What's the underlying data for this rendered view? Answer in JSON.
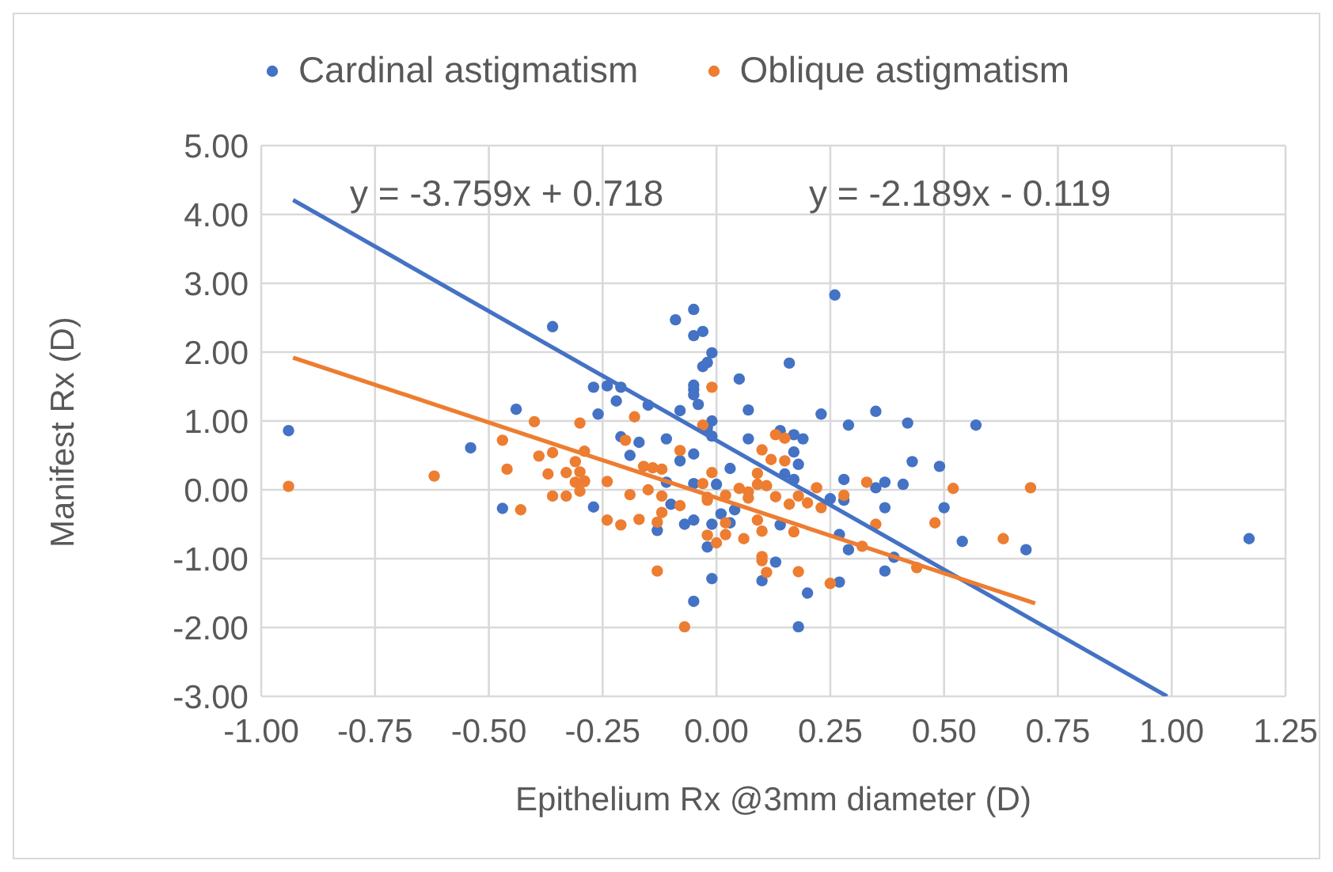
{
  "chart_data": {
    "type": "scatter",
    "xlabel": "Epithelium Rx @3mm diameter (D)",
    "ylabel": "Manifest Rx (D)",
    "annotations": [
      "y = -3.759x + 0.718",
      "y = -2.189x - 0.119"
    ],
    "xlim": [
      -1,
      1.25
    ],
    "xticks": [
      {
        "value": -1,
        "label": "-1.00"
      },
      {
        "value": -0.75,
        "label": "-0.75"
      },
      {
        "value": -0.5,
        "label": "-0.50"
      },
      {
        "value": -0.25,
        "label": "-0.25"
      },
      {
        "value": 0,
        "label": "0.00"
      },
      {
        "value": 0.25,
        "label": "0.25"
      },
      {
        "value": 0.5,
        "label": "0.50"
      },
      {
        "value": 0.75,
        "label": "0.75"
      },
      {
        "value": 1,
        "label": "1.00"
      },
      {
        "value": 1.25,
        "label": "1.25"
      }
    ],
    "ylim": [
      -3,
      5
    ],
    "yticks": [
      {
        "value": -3,
        "label": "-3.00"
      },
      {
        "value": -2,
        "label": "-2.00"
      },
      {
        "value": -1,
        "label": "-1.00"
      },
      {
        "value": 0,
        "label": "0.00"
      },
      {
        "value": 1,
        "label": "1.00"
      },
      {
        "value": 2,
        "label": "2.00"
      },
      {
        "value": 3,
        "label": "3.00"
      },
      {
        "value": 4,
        "label": "4.00"
      },
      {
        "value": 5,
        "label": "5.00"
      }
    ],
    "grid": true,
    "legend": "top",
    "marker": "circle",
    "series": [
      {
        "name": "Cardinal astigmatism",
        "color": "#4472c4",
        "x": [
          -0.94,
          -0.36,
          -0.27,
          -0.26,
          -0.44,
          -0.54,
          -0.47,
          0.26,
          -0.09,
          -0.05,
          -0.05,
          -0.03,
          -0.01,
          -0.02,
          -0.03,
          0.16,
          0.05,
          -0.05,
          -0.05,
          -0.05,
          -0.04,
          -0.24,
          -0.21,
          -0.22,
          -0.15,
          -0.08,
          0.07,
          0.23,
          0.29,
          -0.01,
          -0.02,
          -0.01,
          -0.21,
          -0.17,
          -0.11,
          0.07,
          0.14,
          0.17,
          0.19,
          0.17,
          -0.19,
          -0.08,
          -0.05,
          0.18,
          0.03,
          0.15,
          0.17,
          0.28,
          -0.05,
          0.0,
          -0.11,
          0.25,
          0.28,
          -0.27,
          -0.1,
          0.01,
          0.04,
          0.03,
          0.14,
          -0.07,
          -0.05,
          -0.01,
          -0.13,
          -0.02,
          0.27,
          0.29,
          0.13,
          -0.01,
          0.1,
          0.27,
          0.2,
          -0.05,
          0.18,
          0.35,
          0.42,
          0.57,
          0.43,
          0.49,
          0.37,
          0.41,
          0.35,
          0.37,
          0.5,
          0.54,
          0.68,
          0.37,
          0.39,
          1.17
        ],
        "values": [
          0.86,
          2.37,
          1.49,
          1.1,
          1.17,
          0.61,
          -0.27,
          2.83,
          2.47,
          2.62,
          2.24,
          2.3,
          1.99,
          1.85,
          1.79,
          1.84,
          1.61,
          1.52,
          1.46,
          1.38,
          1.24,
          1.51,
          1.49,
          1.29,
          1.23,
          1.15,
          1.16,
          1.1,
          0.94,
          1.0,
          0.9,
          0.78,
          0.77,
          0.69,
          0.74,
          0.74,
          0.86,
          0.8,
          0.74,
          0.55,
          0.5,
          0.42,
          0.52,
          0.37,
          0.31,
          0.23,
          0.15,
          0.15,
          0.09,
          0.08,
          0.11,
          -0.13,
          -0.15,
          -0.25,
          -0.21,
          -0.35,
          -0.29,
          -0.48,
          -0.51,
          -0.5,
          -0.44,
          -0.5,
          -0.59,
          -0.83,
          -0.65,
          -0.87,
          -1.05,
          -1.29,
          -1.32,
          -1.34,
          -1.5,
          -1.62,
          -1.99,
          1.14,
          0.97,
          0.94,
          0.41,
          0.34,
          0.11,
          0.08,
          0.03,
          -0.26,
          -0.26,
          -0.75,
          -0.87,
          -1.18,
          -0.98,
          -0.71
        ]
      },
      {
        "name": "Oblique astigmatism",
        "color": "#ed7d31",
        "x": [
          -0.94,
          -0.62,
          -0.4,
          -0.3,
          -0.47,
          -0.46,
          -0.39,
          -0.36,
          -0.29,
          -0.31,
          -0.37,
          -0.33,
          -0.3,
          -0.31,
          -0.29,
          -0.3,
          -0.36,
          -0.33,
          -0.43,
          -0.01,
          -0.18,
          -0.03,
          0.13,
          0.15,
          -0.2,
          0.1,
          -0.08,
          0.12,
          0.15,
          -0.16,
          -0.14,
          -0.12,
          -0.01,
          0.09,
          -0.29,
          -0.24,
          -0.03,
          0.09,
          0.11,
          0.22,
          0.33,
          0.05,
          0.07,
          -0.15,
          -0.19,
          -0.12,
          0.02,
          -0.02,
          0.13,
          0.18,
          0.2,
          -0.02,
          0.07,
          0.28,
          0.23,
          0.16,
          -0.08,
          -0.12,
          -0.24,
          -0.21,
          -0.17,
          -0.13,
          0.02,
          0.09,
          -0.02,
          0.0,
          0.02,
          0.06,
          0.1,
          0.17,
          0.1,
          0.1,
          0.11,
          0.18,
          0.25,
          -0.13,
          -0.07,
          0.52,
          0.69,
          0.35,
          0.48,
          0.63,
          0.32,
          0.44
        ],
        "values": [
          0.05,
          0.2,
          0.99,
          0.97,
          0.72,
          0.3,
          0.49,
          0.54,
          0.56,
          0.41,
          0.23,
          0.25,
          0.26,
          0.11,
          0.13,
          -0.02,
          -0.09,
          -0.09,
          -0.29,
          1.49,
          1.06,
          0.94,
          0.8,
          0.75,
          0.72,
          0.58,
          0.57,
          0.44,
          0.42,
          0.34,
          0.32,
          0.3,
          0.25,
          0.24,
          0.12,
          0.12,
          0.09,
          0.08,
          0.06,
          0.03,
          0.11,
          0.02,
          -0.03,
          0.0,
          -0.07,
          -0.09,
          -0.08,
          -0.11,
          -0.1,
          -0.09,
          -0.19,
          -0.15,
          -0.12,
          -0.08,
          -0.26,
          -0.21,
          -0.23,
          -0.33,
          -0.44,
          -0.51,
          -0.43,
          -0.47,
          -0.48,
          -0.44,
          -0.66,
          -0.77,
          -0.65,
          -0.71,
          -0.6,
          -0.61,
          -0.97,
          -1.03,
          -1.2,
          -1.19,
          -1.36,
          -1.18,
          -1.99,
          0.02,
          0.03,
          -0.5,
          -0.48,
          -0.71,
          -0.82,
          -1.13
        ]
      },
      {
        "type": "line",
        "color": "#4472c4",
        "marker": "none",
        "x": [
          -0.93,
          0.99
        ],
        "values": [
          4.21,
          -3.0
        ]
      },
      {
        "type": "line",
        "color": "#ed7d31",
        "marker": "none",
        "x": [
          -0.93,
          0.7
        ],
        "values": [
          1.92,
          -1.65
        ]
      }
    ]
  }
}
